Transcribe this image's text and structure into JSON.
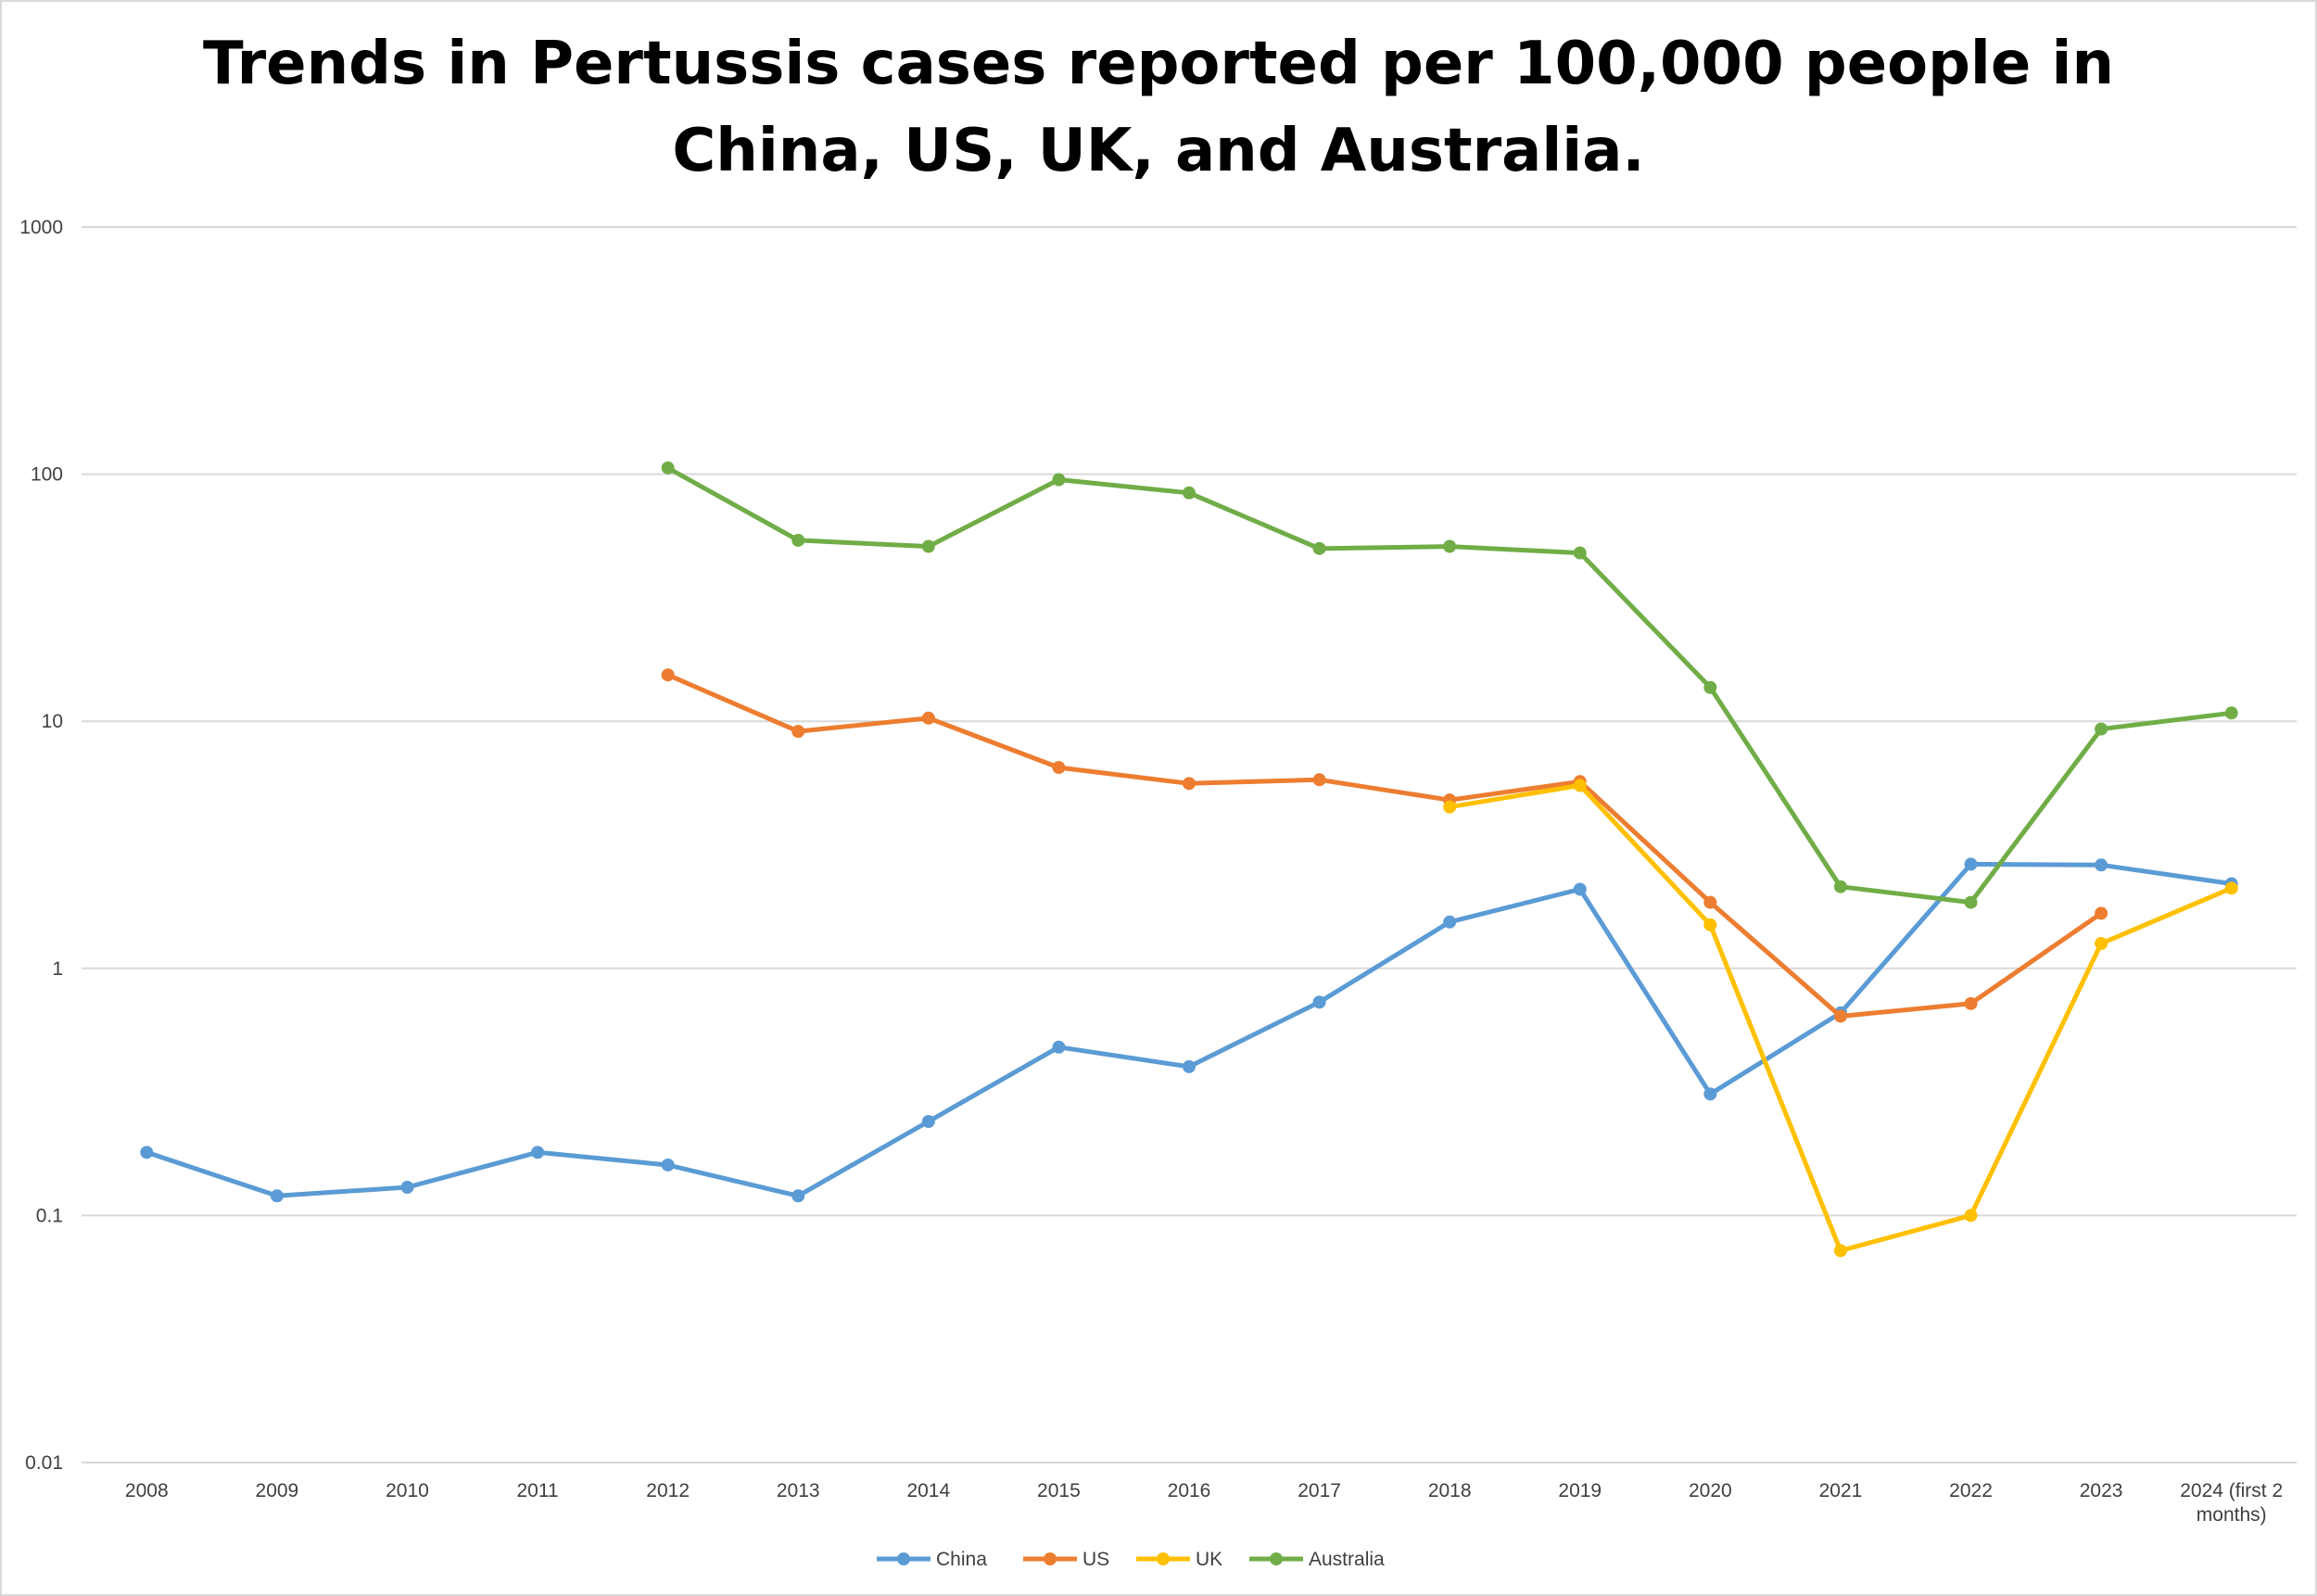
{
  "chart_data": {
    "type": "line",
    "title_lines": [
      "Trends in Pertussis cases reported per 100,000 people in",
      "China, US, UK, and Australia."
    ],
    "xlabel": "",
    "ylabel": "",
    "y_scale": "log",
    "ylim": [
      0.01,
      1000
    ],
    "y_ticks": [
      "0.01",
      "0.1",
      "1",
      "10",
      "100",
      "1000"
    ],
    "grid": "horizontal",
    "legend_position": "bottom",
    "categories": [
      "2008",
      "2009",
      "2010",
      "2011",
      "2012",
      "2013",
      "2014",
      "2015",
      "2016",
      "2017",
      "2018",
      "2019",
      "2020",
      "2021",
      "2022",
      "2023",
      "2024 (first 2 months)"
    ],
    "category_labels": [
      [
        "2008"
      ],
      [
        "2009"
      ],
      [
        "2010"
      ],
      [
        "2011"
      ],
      [
        "2012"
      ],
      [
        "2013"
      ],
      [
        "2014"
      ],
      [
        "2015"
      ],
      [
        "2016"
      ],
      [
        "2017"
      ],
      [
        "2018"
      ],
      [
        "2019"
      ],
      [
        "2020"
      ],
      [
        "2021"
      ],
      [
        "2022"
      ],
      [
        "2023"
      ],
      [
        "2024 (first 2",
        "months)"
      ]
    ],
    "series": [
      {
        "name": "China",
        "color": "#5b9bd5",
        "values": [
          0.18,
          0.12,
          0.13,
          0.18,
          0.16,
          0.12,
          0.24,
          0.48,
          0.4,
          0.73,
          1.54,
          2.09,
          0.31,
          0.66,
          2.64,
          2.62,
          2.2
        ]
      },
      {
        "name": "US",
        "color": "#ed7d31",
        "values": [
          null,
          null,
          null,
          null,
          15.4,
          9.1,
          10.3,
          6.5,
          5.6,
          5.8,
          4.8,
          5.7,
          1.85,
          0.64,
          0.72,
          1.67,
          null
        ]
      },
      {
        "name": "UK",
        "color": "#ffc000",
        "values": [
          null,
          null,
          null,
          null,
          null,
          null,
          null,
          null,
          null,
          null,
          4.5,
          5.5,
          1.5,
          0.072,
          0.1,
          1.26,
          2.11
        ]
      },
      {
        "name": "Australia",
        "color": "#70ad47",
        "values": [
          null,
          null,
          null,
          null,
          106,
          54,
          51,
          95,
          84,
          50,
          51,
          48,
          13.7,
          2.14,
          1.85,
          9.3,
          10.8
        ]
      }
    ]
  }
}
